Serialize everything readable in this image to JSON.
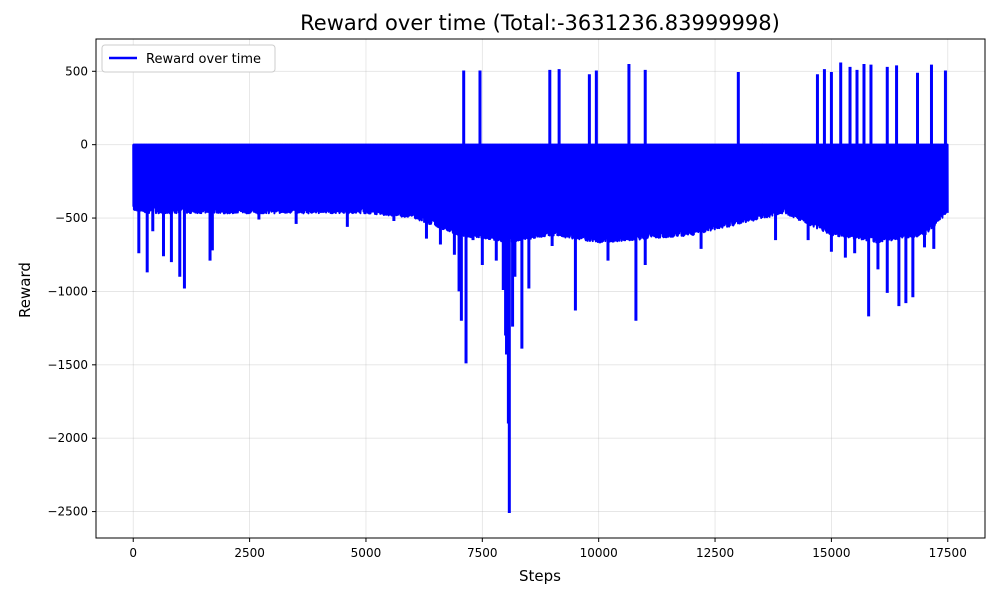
{
  "chart_data": {
    "type": "line",
    "title": "Reward over time (Total:-3631236.83999998)",
    "xlabel": "Steps",
    "ylabel": "Reward",
    "xlim": [
      -800,
      18300
    ],
    "ylim": [
      -2680,
      720
    ],
    "xticks": [
      0,
      2500,
      5000,
      7500,
      10000,
      12500,
      15000,
      17500
    ],
    "yticks": [
      500,
      0,
      -500,
      -1000,
      -1500,
      -2000,
      -2500
    ],
    "xtick_labels": [
      "0",
      "2500",
      "5000",
      "7500",
      "10000",
      "12500",
      "15000",
      "17500"
    ],
    "ytick_labels": [
      "500",
      "0",
      "−500",
      "−1000",
      "−1500",
      "−2000",
      "−2500"
    ],
    "grid": true,
    "legend_position": "upper-left",
    "series": [
      {
        "name": "Reward over time",
        "color": "#0000ff",
        "x_range": [
          0,
          17500
        ],
        "upper": [
          0
        ],
        "lower_band": [
          [
            0,
            -430
          ],
          [
            300,
            -450
          ],
          [
            1000,
            -450
          ],
          [
            2500,
            -450
          ],
          [
            5000,
            -450
          ],
          [
            6000,
            -480
          ],
          [
            7000,
            -600
          ],
          [
            8000,
            -650
          ],
          [
            9000,
            -600
          ],
          [
            10000,
            -650
          ],
          [
            12000,
            -600
          ],
          [
            14000,
            -450
          ],
          [
            15000,
            -600
          ],
          [
            16000,
            -650
          ],
          [
            17000,
            -600
          ],
          [
            17500,
            -450
          ]
        ],
        "positive_spikes": [
          [
            7100,
            505
          ],
          [
            7450,
            505
          ],
          [
            8950,
            510
          ],
          [
            9150,
            515
          ],
          [
            9800,
            480
          ],
          [
            9950,
            505
          ],
          [
            10650,
            550
          ],
          [
            11000,
            510
          ],
          [
            13000,
            495
          ],
          [
            14700,
            480
          ],
          [
            14850,
            515
          ],
          [
            15000,
            495
          ],
          [
            15200,
            560
          ],
          [
            15400,
            530
          ],
          [
            15550,
            510
          ],
          [
            15700,
            550
          ],
          [
            15850,
            545
          ],
          [
            16200,
            530
          ],
          [
            16400,
            540
          ],
          [
            16850,
            490
          ],
          [
            17150,
            545
          ],
          [
            17450,
            505
          ]
        ],
        "negative_spikes": [
          [
            120,
            -740
          ],
          [
            300,
            -870
          ],
          [
            420,
            -590
          ],
          [
            650,
            -760
          ],
          [
            820,
            -800
          ],
          [
            1000,
            -900
          ],
          [
            1100,
            -980
          ],
          [
            1650,
            -790
          ],
          [
            1700,
            -720
          ],
          [
            2700,
            -510
          ],
          [
            3500,
            -540
          ],
          [
            4600,
            -560
          ],
          [
            5600,
            -520
          ],
          [
            6300,
            -640
          ],
          [
            6600,
            -680
          ],
          [
            6900,
            -750
          ],
          [
            7000,
            -1000
          ],
          [
            7050,
            -1200
          ],
          [
            7150,
            -1490
          ],
          [
            7300,
            -650
          ],
          [
            7500,
            -820
          ],
          [
            7800,
            -790
          ],
          [
            7950,
            -990
          ],
          [
            8000,
            -1300
          ],
          [
            8020,
            -1430
          ],
          [
            8060,
            -1900
          ],
          [
            8080,
            -2510
          ],
          [
            8150,
            -1240
          ],
          [
            8200,
            -900
          ],
          [
            8350,
            -1390
          ],
          [
            8500,
            -980
          ],
          [
            9000,
            -690
          ],
          [
            9500,
            -1130
          ],
          [
            10200,
            -790
          ],
          [
            10800,
            -1200
          ],
          [
            11000,
            -820
          ],
          [
            12200,
            -710
          ],
          [
            13800,
            -650
          ],
          [
            14500,
            -650
          ],
          [
            15000,
            -730
          ],
          [
            15300,
            -770
          ],
          [
            15500,
            -740
          ],
          [
            15800,
            -1170
          ],
          [
            16000,
            -850
          ],
          [
            16200,
            -1010
          ],
          [
            16450,
            -1100
          ],
          [
            16600,
            -1080
          ],
          [
            16750,
            -1040
          ],
          [
            17000,
            -700
          ],
          [
            17200,
            -710
          ]
        ]
      }
    ]
  }
}
